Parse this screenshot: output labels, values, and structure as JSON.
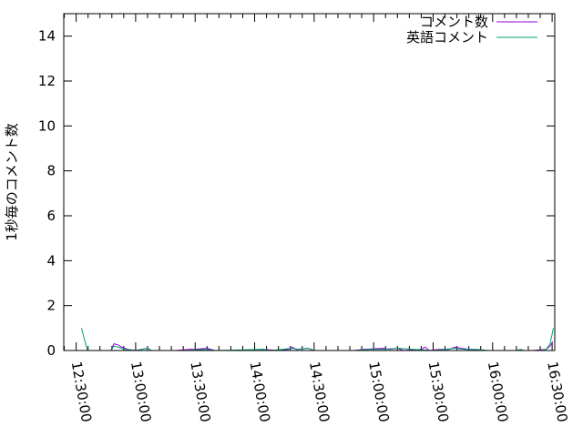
{
  "chart_data": {
    "type": "line",
    "title": "",
    "xlabel": "",
    "ylabel": "1秒毎のコメント数",
    "xlim": [
      "12:23:45",
      "16:31:20"
    ],
    "ylim": [
      0,
      15
    ],
    "x_ticks": [
      "12:30:00",
      "13:00:00",
      "13:30:00",
      "14:00:00",
      "14:30:00",
      "15:00:00",
      "15:30:00",
      "16:00:00",
      "16:30:00"
    ],
    "y_ticks": [
      0,
      2,
      4,
      6,
      8,
      10,
      12,
      14
    ],
    "legend_position": "top-right",
    "grid": false,
    "series": [
      {
        "name": "コメント数",
        "color": "#9400d3",
        "segments": [
          [
            [
              "12:47:30",
              0
            ],
            [
              "12:49:00",
              0.3
            ],
            [
              "12:51:00",
              0.25
            ],
            [
              "12:53:00",
              0.15
            ],
            [
              "12:56:00",
              0.05
            ],
            [
              "13:00:00",
              0
            ],
            [
              "13:06:00",
              0.1
            ],
            [
              "13:08:00",
              0
            ],
            [
              "13:20:00",
              0
            ],
            [
              "13:27:00",
              0.05
            ],
            [
              "13:30:00",
              0.05
            ],
            [
              "13:36:00",
              0.1
            ],
            [
              "13:40:00",
              0
            ],
            [
              "13:55:00",
              0
            ],
            [
              "14:04:00",
              0.05
            ],
            [
              "14:12:00",
              0
            ],
            [
              "14:17:00",
              0.05
            ],
            [
              "14:19:00",
              0.15
            ],
            [
              "14:21:00",
              0.05
            ],
            [
              "14:27:00",
              0.1
            ],
            [
              "14:30:00",
              0
            ],
            [
              "14:50:00",
              0
            ],
            [
              "14:55:00",
              0.05
            ],
            [
              "15:05:00",
              0.1
            ],
            [
              "15:08:00",
              0.05
            ],
            [
              "15:12:00",
              0.1
            ],
            [
              "15:15:00",
              0
            ],
            [
              "15:24:00",
              0.05
            ],
            [
              "15:26:00",
              0.15
            ],
            [
              "15:28:00",
              0
            ],
            [
              "15:33:00",
              0.05
            ],
            [
              "15:38:00",
              0.05
            ],
            [
              "15:41:00",
              0.15
            ],
            [
              "15:44:00",
              0.1
            ],
            [
              "15:48:00",
              0.05
            ],
            [
              "15:55:00",
              0
            ],
            [
              "16:20:00",
              0
            ],
            [
              "16:27:00",
              0.05
            ],
            [
              "16:29:00",
              0.2
            ],
            [
              "16:30:20",
              0.4
            ]
          ]
        ]
      },
      {
        "name": "英語コメント",
        "color": "#009e73",
        "segments": [
          [
            [
              "12:32:40",
              1.0
            ],
            [
              "12:35:30",
              0.05
            ],
            [
              "12:36:30",
              0
            ]
          ],
          [
            [
              "12:47:30",
              0
            ],
            [
              "12:49:00",
              0.2
            ],
            [
              "12:51:00",
              0.15
            ],
            [
              "12:53:00",
              0.1
            ],
            [
              "12:55:00",
              0.05
            ],
            [
              "13:00:00",
              0
            ],
            [
              "13:06:00",
              0.1
            ],
            [
              "13:08:00",
              0
            ],
            [
              "13:24:00",
              0
            ],
            [
              "13:36:00",
              0.05
            ],
            [
              "13:40:00",
              0
            ],
            [
              "14:04:00",
              0.05
            ],
            [
              "14:08:00",
              0
            ],
            [
              "14:14:00",
              0.05
            ],
            [
              "14:19:00",
              0.1
            ],
            [
              "14:22:00",
              0.05
            ],
            [
              "14:27:00",
              0.1
            ],
            [
              "14:30:00",
              0
            ],
            [
              "14:50:00",
              0
            ],
            [
              "14:58:00",
              0.05
            ],
            [
              "15:05:00",
              0.05
            ],
            [
              "15:12:00",
              0.1
            ],
            [
              "15:20:00",
              0.05
            ],
            [
              "15:30:00",
              0
            ],
            [
              "15:36:00",
              0.05
            ],
            [
              "15:41:00",
              0.1
            ],
            [
              "15:46:00",
              0.05
            ],
            [
              "15:52:00",
              0.05
            ],
            [
              "15:58:00",
              0
            ],
            [
              "16:12:00",
              0
            ],
            [
              "16:14:00",
              0.05
            ],
            [
              "16:16:00",
              0
            ],
            [
              "16:24:00",
              0
            ],
            [
              "16:27:00",
              0.05
            ],
            [
              "16:29:00",
              0.3
            ],
            [
              "16:30:40",
              1.0
            ]
          ]
        ]
      }
    ]
  }
}
